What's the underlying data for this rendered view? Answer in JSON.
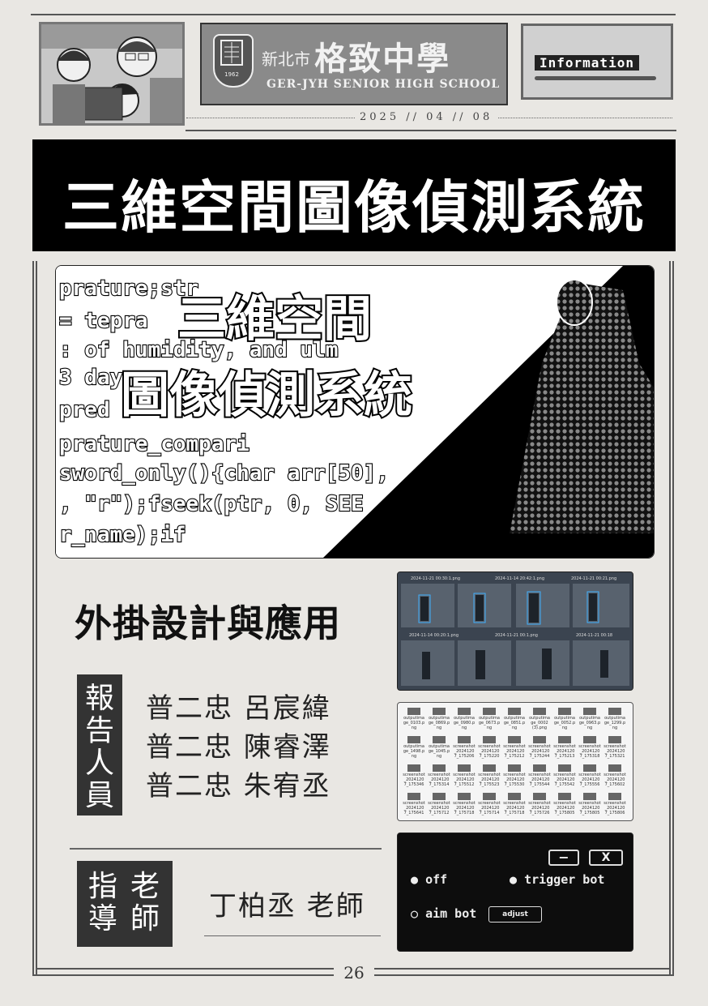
{
  "header": {
    "school_prefix": "新北市",
    "school_name": "格致中學",
    "school_name_en": "GER-JYH SENIOR HIGH SCHOOL",
    "seal_year": "1962",
    "info_label": "Information",
    "date": "2025 // 04 // 08"
  },
  "title": "三維空間圖像偵測系統",
  "hero": {
    "overlay_line1": "三維空間",
    "overlay_line2": "圖像偵測系統",
    "code_lines": [
      "prature;str",
      "= tepra",
      ": of humidity, and ulm",
      "3 day",
      "pred",
      "prature_compari",
      "sword_only(){char arr[50],",
      ", \"r\");fseek(ptr, 0, SEE",
      "r_name);if"
    ]
  },
  "section": {
    "heading": "外掛設計與應用",
    "reporters_label": "報告人員",
    "reporters": [
      "普二忠  呂宸緯",
      "普二忠  陳睿澤",
      "普二忠  朱宥丞"
    ],
    "advisor_label_col1": "指導",
    "advisor_label_col2": "老師",
    "advisor": "丁柏丞  老師"
  },
  "screens": {
    "detection_captions": [
      "2024-11-21 00:30:1.png",
      "2024-11-14 20:42:1.png",
      "2024-11-21 00:21.png",
      "2024-11-14 00:20:1.png",
      "2024-11-21 00:1.png",
      "2024-11-21 00:18"
    ],
    "files": [
      [
        "outputima ge_0103.p ng",
        "outputima ge_0869.p ng",
        "outputima ge_0980.p ng",
        "outputima ge_0673.p ng",
        "outputima ge_0851.p ng",
        "outputima ge_0002 (3).png",
        "outputima ge_0052.p ng",
        "outputima ge_0963.p ng",
        "outputima ge_1299.p ng"
      ],
      [
        "outputima ge_1498.p ng",
        "outputima ge_1045.p ng",
        "screenshot _2024120 7_175206",
        "screenshot _2024120 7_175220",
        "screenshot _2024120 7_175212",
        "screenshot _2024120 7_175244",
        "screenshot _2024120 7_175213",
        "screenshot _2024120 7_175318",
        "screenshot _2024120 7_175321"
      ],
      [
        "screenshot _2024120 7_175346",
        "screenshot _2024120 7_175314",
        "screenshot _2024120 7_175512",
        "screenshot _2024120 7_175523",
        "screenshot _2024120 7_175530",
        "screenshot _2024120 7_175544",
        "screenshot _2024120 7_175542",
        "screenshot _2024120 7_175556",
        "screenshot _2024120 7_175602"
      ],
      [
        "screenshot _2024120 7_175641",
        "screenshot _2024120 7_175712",
        "screenshot _2024120 7_175718",
        "screenshot _2024120 7_175714",
        "screenshot _2024120 7_175718",
        "screenshot _2024120 7_175726",
        "screenshot _2024120 7_175805",
        "screenshot _2024120 7_175805",
        "screenshot _2024120 7_175806"
      ]
    ],
    "ui": {
      "minimize_label": "−",
      "close_label": "X",
      "opt_off": "off",
      "opt_trigger": "trigger bot",
      "opt_aim": "aim bot",
      "adjust_label": "adjust"
    }
  },
  "footer": {
    "page_number": "26"
  }
}
